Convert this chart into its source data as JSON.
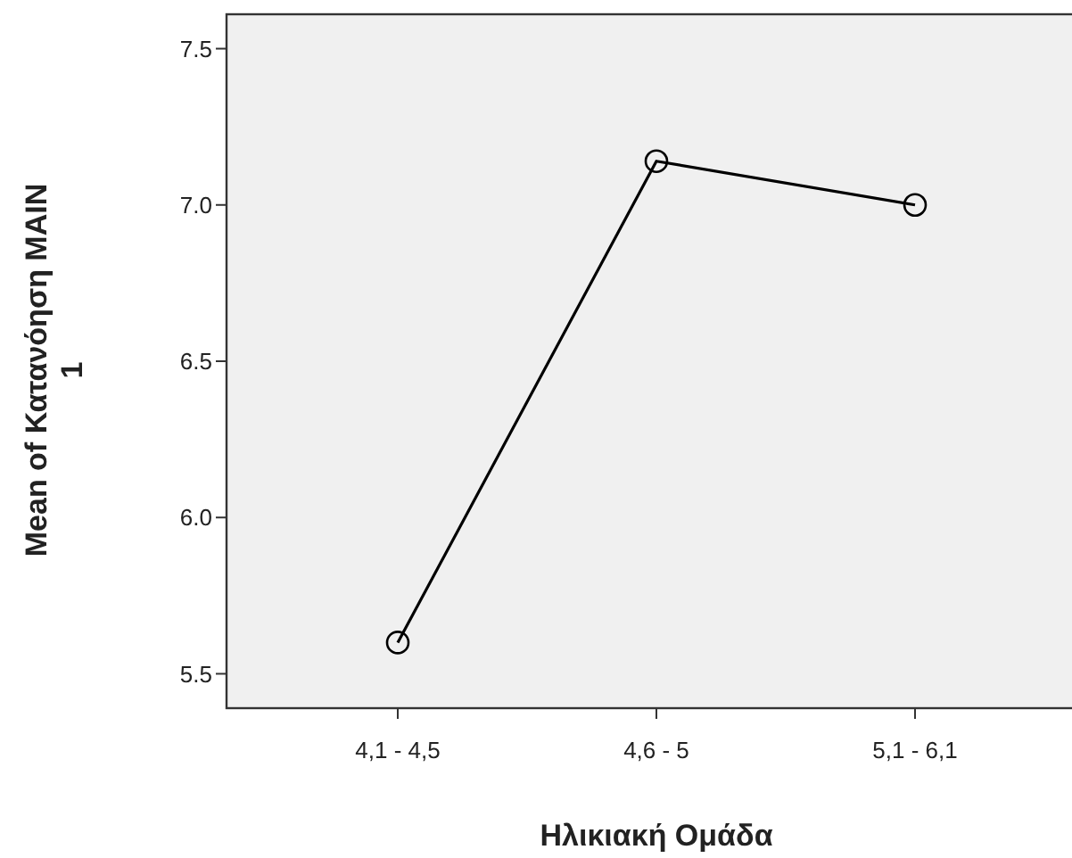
{
  "chart_data": {
    "type": "line",
    "xlabel": "Ηλικιακή Ομάδα",
    "ylabel": "Mean of Κατανόηση MAIN 1",
    "categories": [
      "4,1 - 4,5",
      "4,6 - 5",
      "5,1 - 6,1"
    ],
    "series": [
      {
        "color": "#000000",
        "values": [
          5.6,
          7.14,
          7.0
        ]
      }
    ],
    "ylim": [
      5.39,
      7.61
    ],
    "yticks": [
      {
        "value": 5.5,
        "label": "5.5"
      },
      {
        "value": 6,
        "label": "6.0"
      },
      {
        "value": 6.5,
        "label": "6.5"
      },
      {
        "value": 7,
        "label": "7.0"
      },
      {
        "value": 7.5,
        "label": "7.5"
      }
    ],
    "marker": "circle",
    "grid": false
  }
}
